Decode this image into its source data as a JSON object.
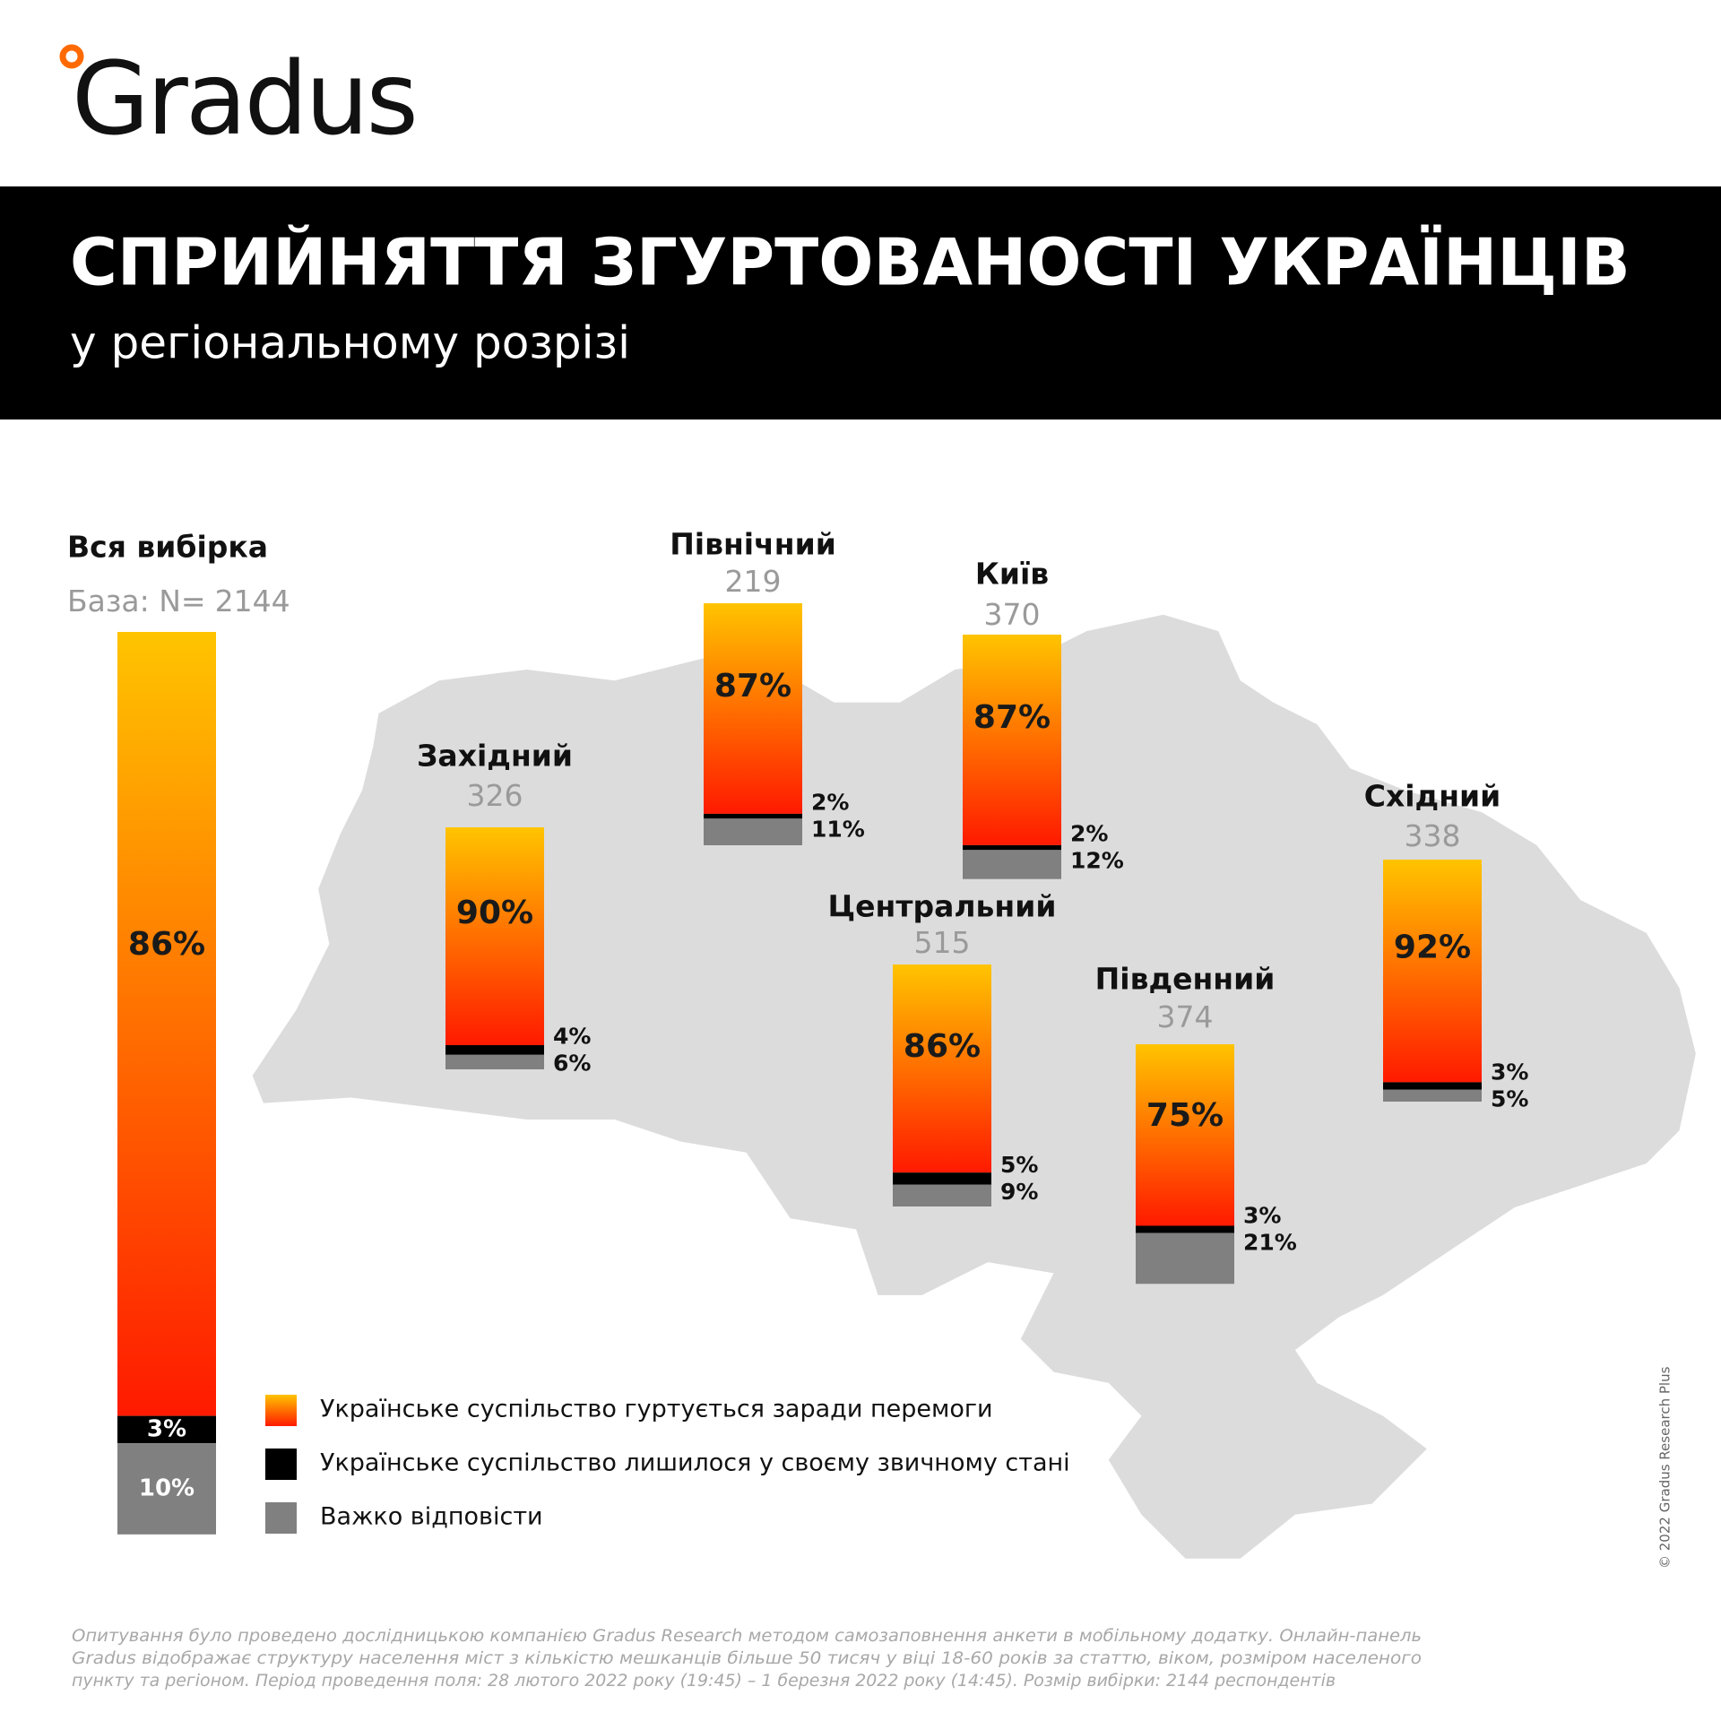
{
  "logo": "Gradus",
  "chart_data": {
    "type": "stacked_bar",
    "title": "СПРИЙНЯТТЯ ЗГУРТОВАНОСТІ УКРАЇНЦІВ",
    "subtitle": "у регіональному розрізі",
    "categories": [
      "Вся вибірка",
      "Західний",
      "Північний",
      "Київ",
      "Центральний",
      "Південний",
      "Східний"
    ],
    "base_prefix": "База: N=",
    "bases": [
      2144,
      326,
      219,
      370,
      515,
      374,
      338
    ],
    "series": [
      {
        "name": "Українське суспільство гуртується заради перемоги",
        "gradient": [
          "#ffc400",
          "#ff1a00"
        ],
        "values": [
          86,
          90,
          87,
          87,
          86,
          75,
          92
        ],
        "value_labels": [
          "86%",
          "90%",
          "87%",
          "87%",
          "86%",
          "75%",
          "92%"
        ]
      },
      {
        "name": "Українське суспільство лишилося у своєму звичному стані",
        "color": "#000000",
        "values": [
          3,
          4,
          2,
          2,
          5,
          3,
          3
        ],
        "value_labels": [
          "3%",
          "4%",
          "2%",
          "2%",
          "5%",
          "3%",
          "3%"
        ]
      },
      {
        "name": "Важко відповісти",
        "color": "#808080",
        "values": [
          10,
          6,
          11,
          12,
          9,
          21,
          5
        ],
        "value_labels": [
          "10%",
          "6%",
          "11%",
          "12%",
          "9%",
          "21%",
          "5%"
        ]
      }
    ],
    "footnote": [
      "Опитування було проведено дослідницькою компанією Gradus Research методом самозаповнення анкети в мобільному додатку. Онлайн-панель",
      "Gradus відображає структуру населення міст з кількістю мешканців більше 50 тисяч у віці 18-60 років за статтю, віком, розміром населеного",
      "пункту та регіоном. Період проведення поля: 28 лютого 2022 року (19:45) – 1 березня 2022 року (14:45). Розмір вибірки: 2144 респондентів"
    ],
    "copyright": "© 2022 Gradus Research Plus"
  }
}
